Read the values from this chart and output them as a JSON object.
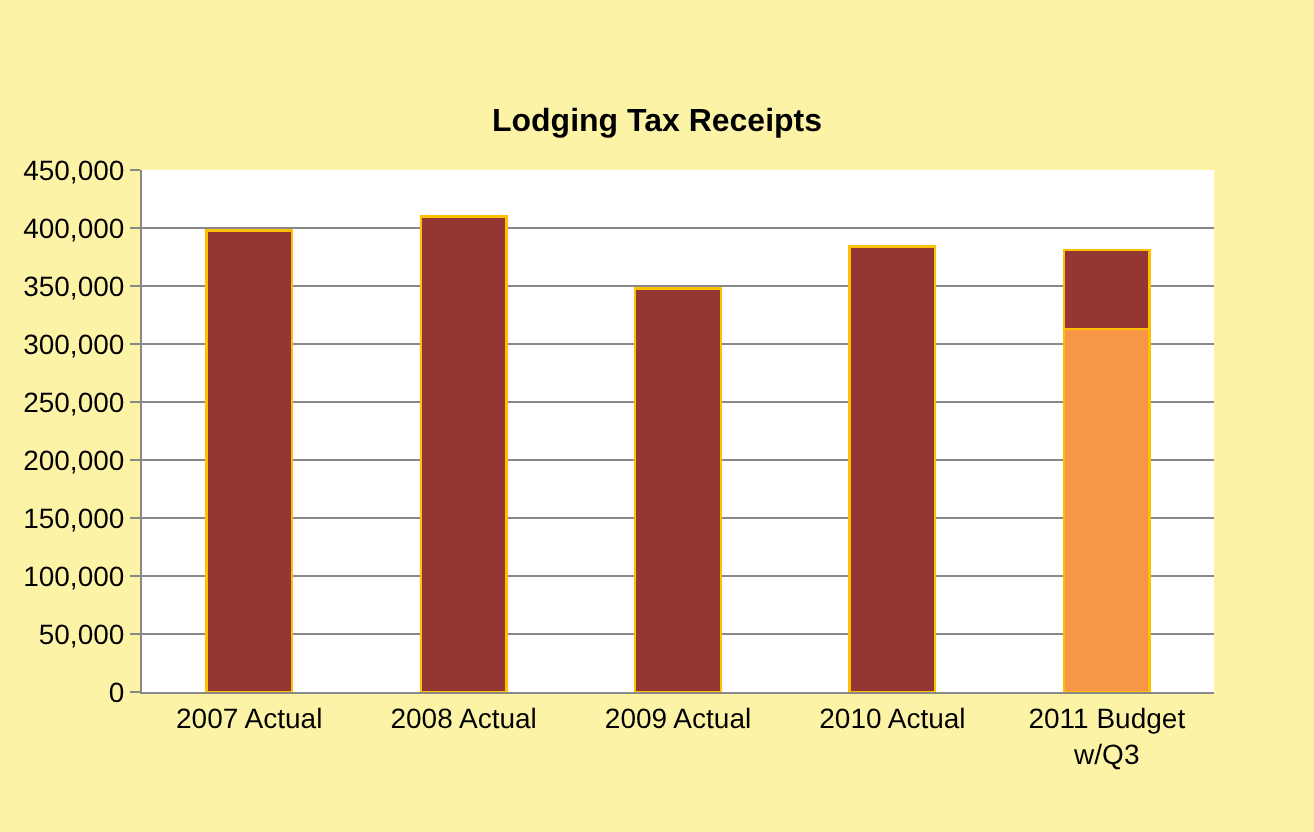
{
  "chart_data": {
    "type": "bar",
    "title": "Lodging Tax Receipts",
    "categories": [
      "2007 Actual",
      "2008 Actual",
      "2009 Actual",
      "2010 Actual",
      "2011 Budget\nw/Q3"
    ],
    "stacked": true,
    "series": [
      {
        "color": "#f79646",
        "values": [
          null,
          null,
          null,
          null,
          313000
        ]
      },
      {
        "color": "#943634",
        "values": [
          398000,
          410000,
          348000,
          384000,
          68000
        ]
      }
    ],
    "ylim": [
      0,
      450000
    ],
    "yticks": [
      {
        "value": 0,
        "label": "0"
      },
      {
        "value": 50000,
        "label": "50,000"
      },
      {
        "value": 100000,
        "label": "100,000"
      },
      {
        "value": 150000,
        "label": "150,000"
      },
      {
        "value": 200000,
        "label": "200,000"
      },
      {
        "value": 250000,
        "label": "250,000"
      },
      {
        "value": 300000,
        "label": "300,000"
      },
      {
        "value": 350000,
        "label": "350,000"
      },
      {
        "value": 400000,
        "label": "400,000"
      },
      {
        "value": 450000,
        "label": "450,000"
      }
    ],
    "grid": "y"
  }
}
